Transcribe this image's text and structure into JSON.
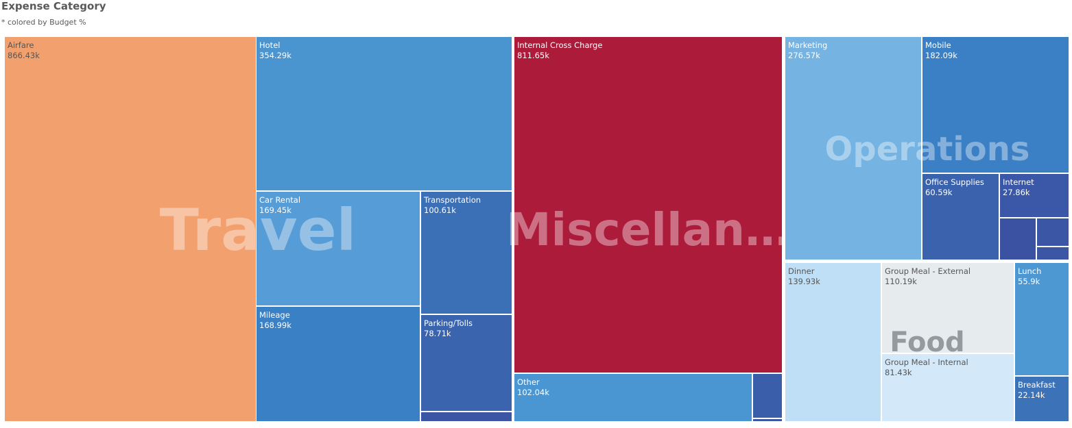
{
  "header": {
    "title": "Expense Category",
    "subtitle": "* colored by Budget %"
  },
  "chart_data": {
    "type": "treemap",
    "groups": [
      {
        "label": "Travel",
        "items": [
          {
            "name": "Airfare",
            "value_label": "866.43k",
            "value": 866.43,
            "color": "#f2a16e"
          },
          {
            "name": "Hotel",
            "value_label": "354.29k",
            "value": 354.29,
            "color": "#4a94d0"
          },
          {
            "name": "Car Rental",
            "value_label": "169.45k",
            "value": 169.45,
            "color": "#569cd6"
          },
          {
            "name": "Transportation",
            "value_label": "100.61k",
            "value": 100.61,
            "color": "#3b6fb6"
          },
          {
            "name": "Mileage",
            "value_label": "168.99k",
            "value": 168.99,
            "color": "#3a80c4"
          },
          {
            "name": "Parking/Tolls",
            "value_label": "78.71k",
            "value": 78.71,
            "color": "#3a64ad"
          },
          {
            "name": "",
            "value_label": "",
            "color": "#3a56a4"
          }
        ]
      },
      {
        "label": "Miscellan…",
        "items": [
          {
            "name": "Internal Cross Charge",
            "value_label": "811.65k",
            "value": 811.65,
            "color": "#ad1b3b"
          },
          {
            "name": "Other",
            "value_label": "102.04k",
            "value": 102.04,
            "color": "#4a96d2"
          },
          {
            "name": "",
            "value_label": "",
            "color": "#3b5eaa"
          },
          {
            "name": "",
            "value_label": "",
            "color": "#3a56a4"
          }
        ]
      },
      {
        "label": "Operations",
        "items": [
          {
            "name": "Marketing",
            "value_label": "276.57k",
            "value": 276.57,
            "color": "#74b3e2"
          },
          {
            "name": "Mobile",
            "value_label": "182.09k",
            "value": 182.09,
            "color": "#3b80c5"
          },
          {
            "name": "Office Supplies",
            "value_label": "60.59k",
            "value": 60.59,
            "color": "#3a62ad"
          },
          {
            "name": "Internet",
            "value_label": "27.86k",
            "value": 27.86,
            "color": "#3a58a7"
          },
          {
            "name": "",
            "value_label": "",
            "color": "#3a52a1"
          },
          {
            "name": "",
            "value_label": "",
            "color": "#3a56a4"
          },
          {
            "name": "",
            "value_label": "",
            "color": "#3a56a4"
          }
        ]
      },
      {
        "label": "Food",
        "items": [
          {
            "name": "Dinner",
            "value_label": "139.93k",
            "value": 139.93,
            "color": "#bedff5"
          },
          {
            "name": "Group Meal - External",
            "value_label": "110.19k",
            "value": 110.19,
            "color": "#e6ecee"
          },
          {
            "name": "Lunch",
            "value_label": "55.9k",
            "value": 55.9,
            "color": "#4d97d3"
          },
          {
            "name": "Group Meal - Internal",
            "value_label": "81.43k",
            "value": 81.43,
            "color": "#d3e8f8"
          },
          {
            "name": "Breakfast",
            "value_label": "22.14k",
            "value": 22.14,
            "color": "#3b72b8"
          }
        ]
      }
    ]
  }
}
